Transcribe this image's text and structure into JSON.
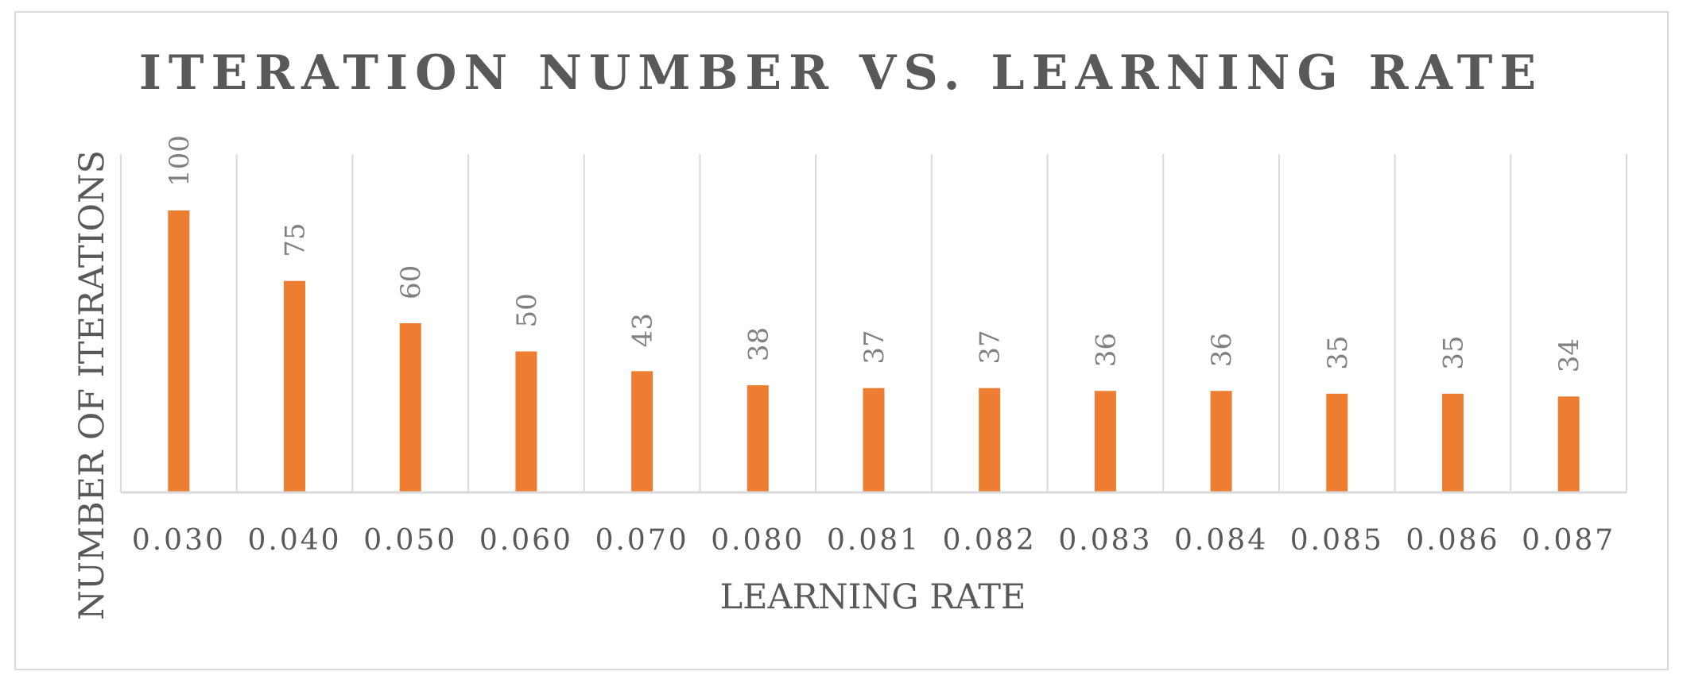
{
  "chart_data": {
    "type": "bar",
    "title": "ITERATION NUMBER VS. LEARNING RATE",
    "xlabel": "LEARNING RATE",
    "ylabel": "NUMBER OF ITERATIONS",
    "categories": [
      "0.030",
      "0.040",
      "0.050",
      "0.060",
      "0.070",
      "0.080",
      "0.081",
      "0.082",
      "0.083",
      "0.084",
      "0.085",
      "0.086",
      "0.087"
    ],
    "values": [
      100,
      75,
      60,
      50,
      43,
      38,
      37,
      37,
      36,
      36,
      35,
      35,
      34
    ],
    "data_labels": [
      "100",
      "75",
      "60",
      "50",
      "43",
      "38",
      "37",
      "37",
      "36",
      "36",
      "35",
      "35",
      "34"
    ],
    "ylim": [
      0,
      120
    ],
    "grid": "vertical",
    "legend": "none",
    "colors": {
      "bar": "#ED7D31",
      "gridline": "#d9d9d9",
      "axis": "#d9d9d9",
      "text": "#595959",
      "data_label": "#808080"
    }
  }
}
